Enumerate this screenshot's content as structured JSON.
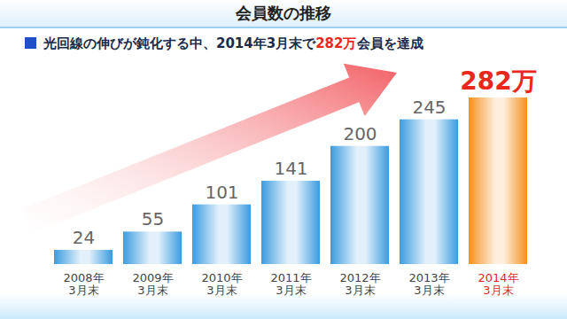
{
  "chart_data": {
    "type": "bar",
    "title": "会員数の推移",
    "subtitle": "光回線の伸びが鈍化する中、2014年3月末で282万会員を達成",
    "categories": [
      "2008年\n3月末",
      "2009年\n3月末",
      "2010年\n3月末",
      "2011年\n3月末",
      "2012年\n3月末",
      "2013年\n3月末",
      "2014年\n3月末"
    ],
    "values": [
      24,
      55,
      101,
      141,
      200,
      245,
      282
    ],
    "value_labels": [
      "24",
      "55",
      "101",
      "141",
      "200",
      "245",
      "282万"
    ],
    "colors": [
      "#3a9be0",
      "#3a9be0",
      "#3a9be0",
      "#3a9be0",
      "#3a9be0",
      "#3a9be0",
      "#f5901e"
    ],
    "ylim": [
      0,
      300
    ],
    "data_labels": true,
    "tick_labels": "x",
    "grid": false
  }
}
